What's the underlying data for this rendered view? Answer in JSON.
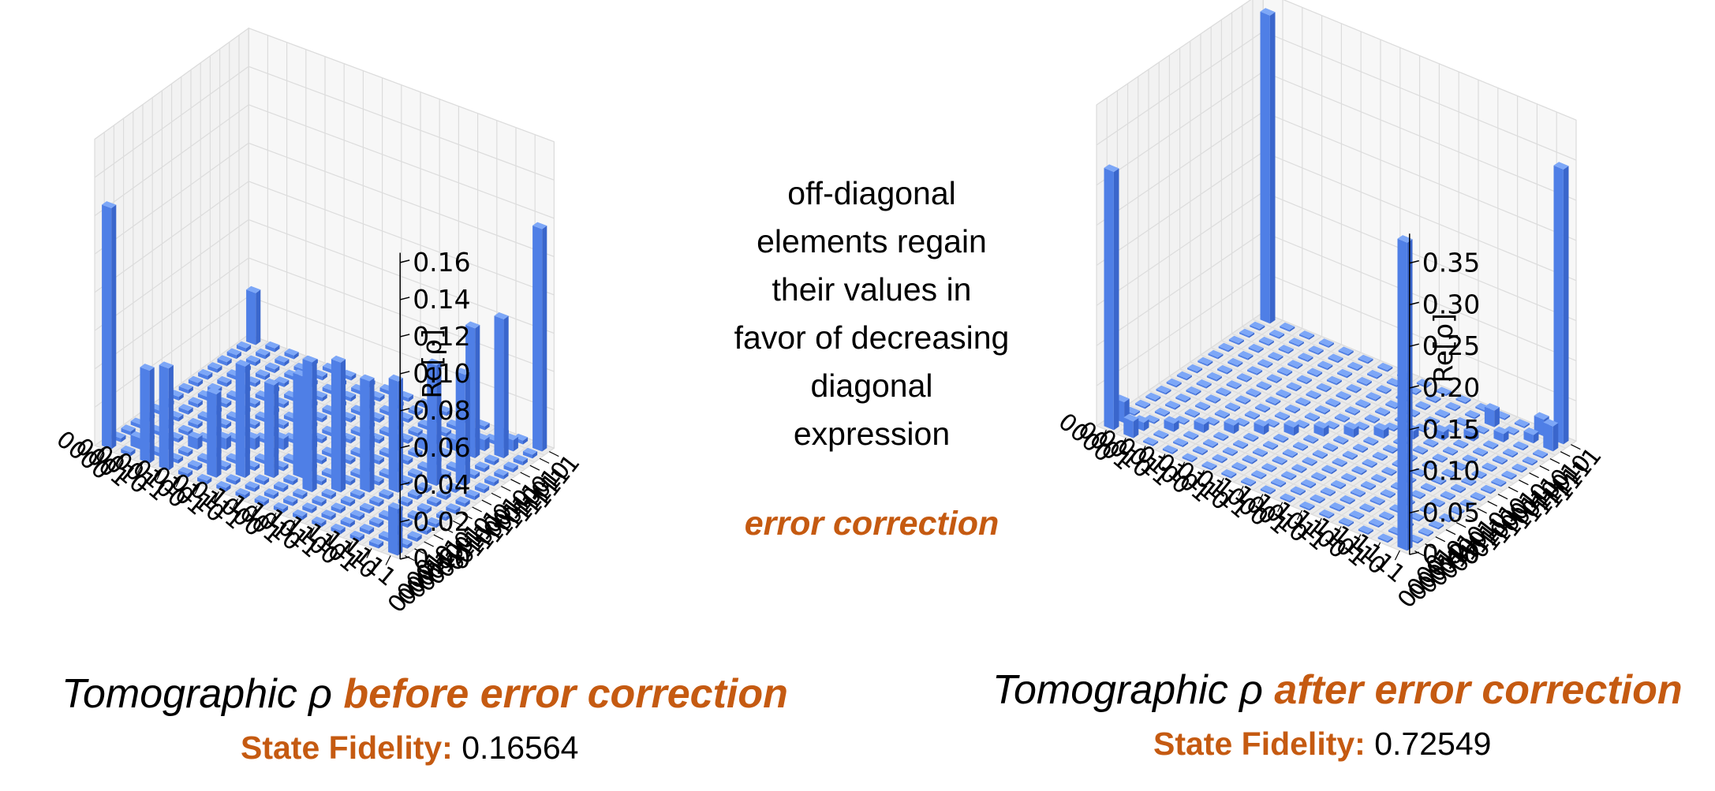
{
  "chart_data": [
    {
      "type": "bar3d",
      "zlabel": "Re[ρ]",
      "zticks": [
        "0.00",
        "0.02",
        "0.04",
        "0.06",
        "0.08",
        "0.10",
        "0.12",
        "0.14",
        "0.16"
      ],
      "zlim": [
        0,
        0.17
      ],
      "basis_labels": [
        "0000",
        "0001",
        "0010",
        "0011",
        "0100",
        "0101",
        "0110",
        "0111",
        "1000",
        "1001",
        "1010",
        "1011",
        "1100",
        "1101",
        "1110",
        "1111"
      ],
      "diagonal_values": [
        0.13,
        0.006,
        0.006,
        0.006,
        0.006,
        0.006,
        0.006,
        0.006,
        0.006,
        0.006,
        0.006,
        0.006,
        0.006,
        0.006,
        0.006,
        0.12
      ],
      "off_diagonal_values": [
        {
          "row": 0,
          "col": 15,
          "value": 0.028
        },
        {
          "row": 15,
          "col": 0,
          "value": 0.025
        },
        {
          "row": 2,
          "col": 0,
          "value": 0.05
        },
        {
          "row": 3,
          "col": 0,
          "value": 0.055
        },
        {
          "row": 5,
          "col": 1,
          "value": 0.045
        },
        {
          "row": 6,
          "col": 2,
          "value": 0.06
        },
        {
          "row": 7,
          "col": 3,
          "value": 0.05
        },
        {
          "row": 8,
          "col": 4,
          "value": 0.055
        },
        {
          "row": 9,
          "col": 3,
          "value": 0.07
        },
        {
          "row": 10,
          "col": 4,
          "value": 0.07
        },
        {
          "row": 11,
          "col": 5,
          "value": 0.06
        },
        {
          "row": 12,
          "col": 6,
          "value": 0.06
        },
        {
          "row": 13,
          "col": 8,
          "value": 0.065
        },
        {
          "row": 14,
          "col": 9,
          "value": 0.06
        },
        {
          "row": 13,
          "col": 12,
          "value": 0.07
        },
        {
          "row": 14,
          "col": 13,
          "value": 0.075
        }
      ]
    },
    {
      "type": "bar3d",
      "zlabel": "Re[ρ]",
      "zticks": [
        "0.00",
        "0.05",
        "0.10",
        "0.15",
        "0.20",
        "0.25",
        "0.30",
        "0.35"
      ],
      "zlim": [
        0,
        0.4
      ],
      "basis_labels": [
        "0000",
        "0001",
        "0010",
        "0011",
        "0100",
        "0101",
        "0110",
        "0111",
        "1000",
        "1001",
        "1010",
        "1011",
        "1100",
        "1101",
        "1110",
        "1111"
      ],
      "diagonal_values": [
        0.31,
        0.01,
        0.01,
        0.01,
        0.01,
        0.01,
        0.01,
        0.01,
        0.01,
        0.01,
        0.01,
        0.01,
        0.01,
        0.01,
        0.01,
        0.33
      ],
      "off_diagonal_values": [
        {
          "row": 0,
          "col": 15,
          "value": 0.37
        },
        {
          "row": 15,
          "col": 0,
          "value": 0.37
        },
        {
          "row": 1,
          "col": 0,
          "value": 0.02
        },
        {
          "row": 0,
          "col": 1,
          "value": 0.025
        },
        {
          "row": 14,
          "col": 15,
          "value": 0.02
        },
        {
          "row": 15,
          "col": 14,
          "value": 0.03
        },
        {
          "row": 12,
          "col": 14,
          "value": 0.02
        }
      ]
    }
  ],
  "annotation": {
    "lines": [
      "off-diagonal",
      "elements regain",
      "their values in",
      "favor of decreasing",
      "diagonal",
      "expression"
    ],
    "arrow_label": "error correction"
  },
  "panels": [
    {
      "caption_prefix": "Tomographic ρ ",
      "caption_highlight": "before error correction",
      "fidelity_label": "State Fidelity:",
      "fidelity_value": "0.16564"
    },
    {
      "caption_prefix": "Tomographic ρ ",
      "caption_highlight": "after error correction",
      "fidelity_label": "State Fidelity:",
      "fidelity_value": "0.72549"
    }
  ],
  "colors": {
    "bar_top": "#7da7f7",
    "bar_left": "#4f7fe6",
    "bar_right": "#3a66cc",
    "pane": "#ebebeb",
    "accent": "#c55a11"
  }
}
